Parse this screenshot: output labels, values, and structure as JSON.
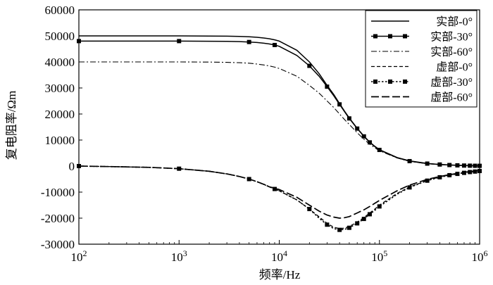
{
  "chart_data": {
    "type": "line",
    "title": "",
    "xlabel": "频率/Hz",
    "ylabel": "复电阻率/Ωm",
    "xscale": "log",
    "xlim": [
      100,
      1000000
    ],
    "ylim": [
      -30000,
      60000
    ],
    "x_ticks": [
      {
        "base": "10",
        "exp": "2"
      },
      {
        "base": "10",
        "exp": "3"
      },
      {
        "base": "10",
        "exp": "4"
      },
      {
        "base": "10",
        "exp": "5"
      },
      {
        "base": "10",
        "exp": "6"
      }
    ],
    "y_ticks": [
      "-30000",
      "-20000",
      "-10000",
      "0",
      "10000",
      "20000",
      "30000",
      "40000",
      "50000",
      "60000"
    ],
    "legend_position": "top-right",
    "x": [
      100,
      200,
      500,
      1000,
      2000,
      3000,
      4000,
      5000,
      6000,
      7000,
      8000,
      9000,
      10000,
      15000,
      20000,
      25000,
      30000,
      35000,
      40000,
      45000,
      50000,
      60000,
      70000,
      80000,
      90000,
      100000,
      150000,
      200000,
      300000,
      400000,
      500000,
      600000,
      700000,
      800000,
      900000,
      1000000
    ],
    "series": [
      {
        "name": "实部-0°",
        "style": "solid",
        "marker": "none",
        "values": [
          50000,
          50000,
          50000,
          50000,
          49950,
          49900,
          49800,
          49650,
          49450,
          49200,
          48900,
          48500,
          48000,
          44500,
          40000,
          35500,
          31000,
          27500,
          24000,
          21000,
          18500,
          14500,
          11500,
          9200,
          7600,
          6300,
          3300,
          2000,
          1000,
          620,
          420,
          300,
          220,
          170,
          130,
          100
        ]
      },
      {
        "name": "实部-30°",
        "style": "solid",
        "marker": "square",
        "values": [
          48000,
          48000,
          48000,
          48000,
          47950,
          47900,
          47800,
          47650,
          47450,
          47200,
          46900,
          46500,
          46000,
          42500,
          38500,
          34500,
          30500,
          27000,
          23700,
          20800,
          18300,
          14400,
          11400,
          9100,
          7500,
          6200,
          3200,
          1900,
          950,
          600,
          400,
          280,
          200,
          150,
          120,
          100
        ]
      },
      {
        "name": "实部-60°",
        "style": "dash-dot",
        "marker": "none",
        "values": [
          40000,
          40000,
          40000,
          40000,
          39950,
          39850,
          39700,
          39500,
          39200,
          38850,
          38450,
          38000,
          37500,
          34500,
          31000,
          28000,
          25000,
          22500,
          20000,
          17800,
          16000,
          12800,
          10300,
          8400,
          7000,
          5900,
          3100,
          1800,
          900,
          560,
          380,
          270,
          190,
          140,
          110,
          100
        ]
      },
      {
        "name": "虚部-0°",
        "style": "dashed",
        "marker": "none",
        "values": [
          0,
          -200,
          -500,
          -1000,
          -2000,
          -3000,
          -4000,
          -5000,
          -6000,
          -7000,
          -8000,
          -8800,
          -9500,
          -13000,
          -16500,
          -19500,
          -22000,
          -23500,
          -24000,
          -23800,
          -23200,
          -21500,
          -19800,
          -18000,
          -16500,
          -15000,
          -10500,
          -8000,
          -5500,
          -4200,
          -3400,
          -2900,
          -2500,
          -2200,
          -2000,
          -1800
        ]
      },
      {
        "name": "虚部-30°",
        "style": "dotted",
        "marker": "square",
        "values": [
          0,
          -200,
          -500,
          -1000,
          -2000,
          -3000,
          -4000,
          -5000,
          -6000,
          -7000,
          -8000,
          -8800,
          -9500,
          -13000,
          -16500,
          -20000,
          -22500,
          -24000,
          -24500,
          -24300,
          -23700,
          -22000,
          -20300,
          -18500,
          -17000,
          -15500,
          -10800,
          -8200,
          -5600,
          -4300,
          -3500,
          -3000,
          -2600,
          -2300,
          -2100,
          -1900
        ]
      },
      {
        "name": "虚部-60°",
        "style": "long-dash",
        "marker": "none",
        "values": [
          0,
          -200,
          -500,
          -1000,
          -2000,
          -3000,
          -4000,
          -5000,
          -6000,
          -7000,
          -8000,
          -8500,
          -9000,
          -12000,
          -15000,
          -17300,
          -18800,
          -19600,
          -20000,
          -19800,
          -19400,
          -18000,
          -16800,
          -15500,
          -14300,
          -13200,
          -9500,
          -7300,
          -5100,
          -4000,
          -3300,
          -2800,
          -2400,
          -2100,
          -1900,
          -1700
        ]
      }
    ]
  }
}
